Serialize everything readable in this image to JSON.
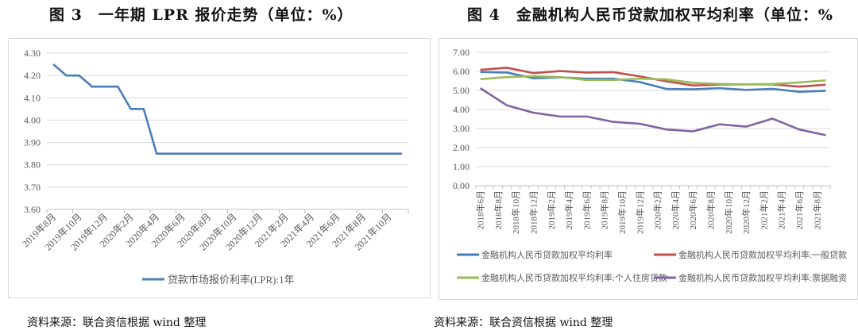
{
  "figures": [
    {
      "title": "图 3　一年期 LPR 报价走势（单位：%）",
      "source": "资料来源：联合资信根据 wind 整理"
    },
    {
      "title": "图 4　金融机构人民币贷款加权平均利率（单位：%",
      "source": "资料来源：联合资信根据 wind 整理"
    }
  ],
  "chart_data": [
    {
      "type": "line",
      "ylim": [
        3.6,
        4.3
      ],
      "yticks": [
        "3.60",
        "3.70",
        "3.80",
        "3.90",
        "4.00",
        "4.10",
        "4.20",
        "4.30"
      ],
      "grid": true,
      "legend_position": "bottom",
      "x_tick_labels": [
        "2019年8月",
        "2019年10月",
        "2019年12月",
        "2020年2月",
        "2020年4月",
        "2020年6月",
        "2020年8月",
        "2020年10月",
        "2020年12月",
        "2021年2月",
        "2021年4月",
        "2021年6月",
        "2021年8月",
        "2021年10月"
      ],
      "x": [
        "2019-08",
        "2019-09",
        "2019-10",
        "2019-11",
        "2019-12",
        "2020-01",
        "2020-02",
        "2020-03",
        "2020-04",
        "2020-05",
        "2020-06",
        "2020-07",
        "2020-08",
        "2020-09",
        "2020-10",
        "2020-11",
        "2020-12",
        "2021-01",
        "2021-02",
        "2021-03",
        "2021-04",
        "2021-05",
        "2021-06",
        "2021-07",
        "2021-08",
        "2021-09",
        "2021-10",
        "2021-11"
      ],
      "series": [
        {
          "name": "贷款市场报价利率(LPR):1年",
          "color": "#4a7ebb",
          "values": [
            4.25,
            4.2,
            4.2,
            4.15,
            4.15,
            4.15,
            4.05,
            4.05,
            3.85,
            3.85,
            3.85,
            3.85,
            3.85,
            3.85,
            3.85,
            3.85,
            3.85,
            3.85,
            3.85,
            3.85,
            3.85,
            3.85,
            3.85,
            3.85,
            3.85,
            3.85,
            3.85,
            3.85
          ]
        }
      ]
    },
    {
      "type": "line",
      "ylim": [
        0,
        7
      ],
      "yticks": [
        "0.00",
        "1.00",
        "2.00",
        "3.00",
        "4.00",
        "5.00",
        "6.00",
        "7.00"
      ],
      "grid": true,
      "legend_position": "bottom",
      "x_tick_labels": [
        "2018年6月",
        "2018年8月",
        "2018年10月",
        "2018年12月",
        "2019年2月",
        "2019年4月",
        "2019年6月",
        "2019年8月",
        "2019年10月",
        "2019年12月",
        "2020年2月",
        "2020年4月",
        "2020年6月",
        "2020年8月",
        "2020年10月",
        "2020年12月",
        "2021年2月",
        "2021年4月",
        "2021年6月",
        "2021年8月"
      ],
      "x": [
        "2018-06",
        "2018-09",
        "2018-12",
        "2019-03",
        "2019-06",
        "2019-09",
        "2019-12",
        "2020-03",
        "2020-06",
        "2020-09",
        "2020-12",
        "2021-03",
        "2021-06",
        "2021-09"
      ],
      "series": [
        {
          "name": "金融机构人民币贷款加权平均利率",
          "color": "#4a7ebb",
          "values": [
            5.97,
            5.94,
            5.64,
            5.69,
            5.62,
            5.62,
            5.44,
            5.08,
            5.06,
            5.12,
            5.03,
            5.08,
            4.93,
            4.98
          ]
        },
        {
          "name": "金融机构人民币贷款加权平均利率:一般贷款",
          "color": "#c0504d",
          "values": [
            6.08,
            6.19,
            5.91,
            6.02,
            5.94,
            5.96,
            5.74,
            5.48,
            5.26,
            5.31,
            5.32,
            5.32,
            5.2,
            5.3
          ]
        },
        {
          "name": "金融机构人民币贷款加权平均利率:个人住房贷款",
          "color": "#9bbb59",
          "values": [
            5.59,
            5.7,
            5.75,
            5.7,
            5.55,
            5.55,
            5.62,
            5.58,
            5.4,
            5.34,
            5.32,
            5.34,
            5.42,
            5.53
          ]
        },
        {
          "name": "金融机构人民币贷款加权平均利率:票据融资",
          "color": "#8064a2",
          "values": [
            5.12,
            4.22,
            3.83,
            3.63,
            3.63,
            3.35,
            3.25,
            2.95,
            2.85,
            3.22,
            3.1,
            3.52,
            2.95,
            2.65
          ]
        }
      ]
    }
  ]
}
